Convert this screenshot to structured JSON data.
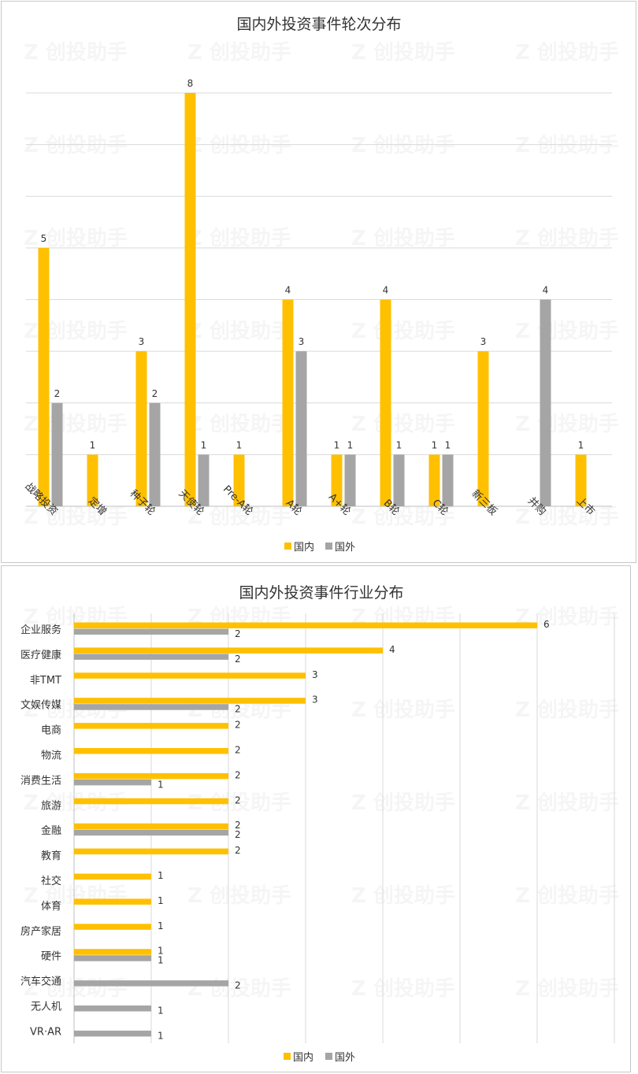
{
  "chart_data": [
    {
      "type": "bar",
      "title": "国内外投资事件轮次分布",
      "categories": [
        "战略投资",
        "定增",
        "种子轮",
        "天使轮",
        "Pre-A轮",
        "A轮",
        "A+轮",
        "B轮",
        "C轮",
        "新三板",
        "并购",
        "上市"
      ],
      "series": [
        {
          "name": "国内",
          "values": [
            5,
            1,
            3,
            8,
            1,
            4,
            1,
            4,
            1,
            3,
            null,
            1
          ]
        },
        {
          "name": "国外",
          "values": [
            2,
            null,
            2,
            1,
            null,
            3,
            1,
            1,
            1,
            null,
            4,
            null
          ]
        }
      ],
      "ylim": [
        0,
        8
      ],
      "grid": true,
      "legend": "bottom"
    },
    {
      "type": "bar",
      "orientation": "horizontal",
      "title": "国内外投资事件行业分布",
      "categories": [
        "企业服务",
        "医疗健康",
        "非TMT",
        "文娱传媒",
        "电商",
        "物流",
        "消费生活",
        "旅游",
        "金融",
        "教育",
        "社交",
        "体育",
        "房产家居",
        "硬件",
        "汽车交通",
        "无人机",
        "VR·AR"
      ],
      "series": [
        {
          "name": "国内",
          "values": [
            6,
            4,
            3,
            3,
            2,
            2,
            2,
            2,
            2,
            2,
            1,
            1,
            1,
            1,
            null,
            null,
            null
          ]
        },
        {
          "name": "国外",
          "values": [
            2,
            2,
            null,
            2,
            null,
            null,
            1,
            null,
            2,
            null,
            null,
            null,
            null,
            1,
            2,
            1,
            1
          ]
        }
      ],
      "xlim": [
        0,
        7
      ],
      "grid": true,
      "legend": "bottom"
    }
  ],
  "colors": {
    "domestic": "#FFC000",
    "foreign": "#A5A5A5"
  },
  "watermark": "创投助手"
}
